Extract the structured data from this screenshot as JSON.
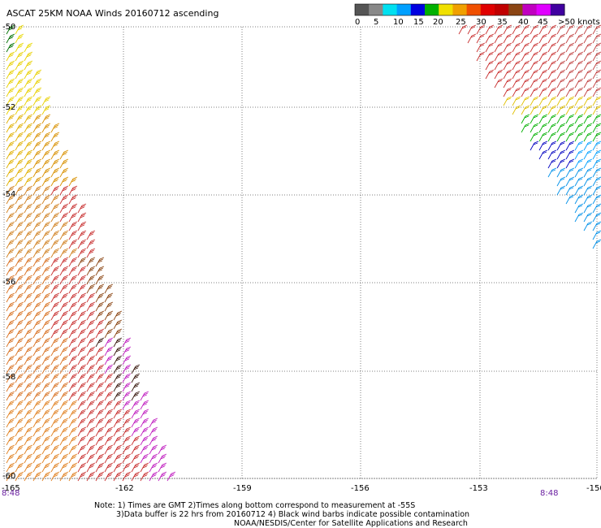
{
  "title": "ASCAT 25KM NOAA Winds 20160712 ascending",
  "legend": {
    "ticks": [
      "0",
      "5",
      "10",
      "15",
      "20",
      "25",
      "30",
      "35",
      "40",
      "45",
      ">50 knots"
    ],
    "colors": [
      "#555555",
      "#888888",
      "#00e0f0",
      "#00a0ff",
      "#0000e0",
      "#00b000",
      "#f0e000",
      "#f0a000",
      "#f05000",
      "#e00000",
      "#c00000",
      "#8b4513",
      "#c000c0",
      "#e000ff",
      "#4000a0"
    ]
  },
  "map": {
    "lat_labels": [
      "-50",
      "-52",
      "-54",
      "-56",
      "-58",
      "-60"
    ],
    "lon_labels": [
      "-165",
      "-162",
      "-159",
      "-156",
      "-153",
      "-150"
    ],
    "time_labels": [
      "8:48",
      "8:48"
    ]
  },
  "notes": {
    "line1": "Note: 1) Times are GMT 2)Times along bottom correspond to measurement at -55S",
    "line2": "3)Data buffer is 22 hrs from 20160712 4) Black wind barbs indicate possible contamination",
    "line3": "NOAA/NESDIS/Center for Satellite Applications and Research"
  }
}
